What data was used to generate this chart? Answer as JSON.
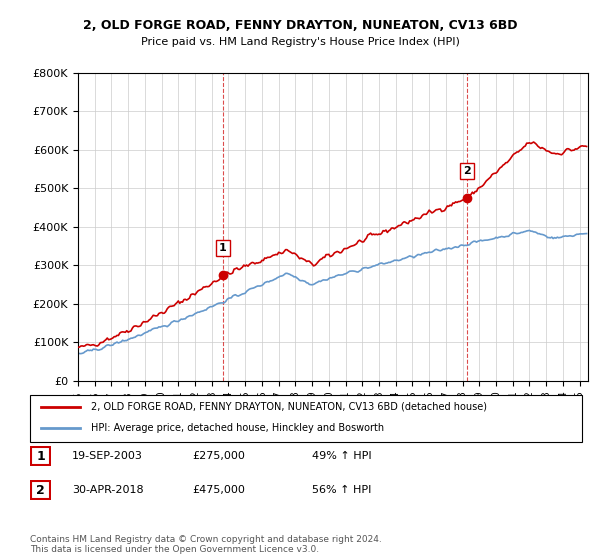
{
  "title": "2, OLD FORGE ROAD, FENNY DRAYTON, NUNEATON, CV13 6BD",
  "subtitle": "Price paid vs. HM Land Registry's House Price Index (HPI)",
  "legend_line1": "2, OLD FORGE ROAD, FENNY DRAYTON, NUNEATON, CV13 6BD (detached house)",
  "legend_line2": "HPI: Average price, detached house, Hinckley and Bosworth",
  "marker1_label": "1",
  "marker1_date": "19-SEP-2003",
  "marker1_price": "£275,000",
  "marker1_hpi": "49% ↑ HPI",
  "marker2_label": "2",
  "marker2_date": "30-APR-2018",
  "marker2_price": "£475,000",
  "marker2_hpi": "56% ↑ HPI",
  "footer": "Contains HM Land Registry data © Crown copyright and database right 2024.\nThis data is licensed under the Open Government Licence v3.0.",
  "red_color": "#cc0000",
  "blue_color": "#6699cc",
  "marker_color": "#cc0000",
  "vline_color": "#cc0000",
  "background_color": "#ffffff",
  "grid_color": "#cccccc",
  "ylim": [
    0,
    800000
  ],
  "xlim_start": 1995.0,
  "xlim_end": 2025.5
}
